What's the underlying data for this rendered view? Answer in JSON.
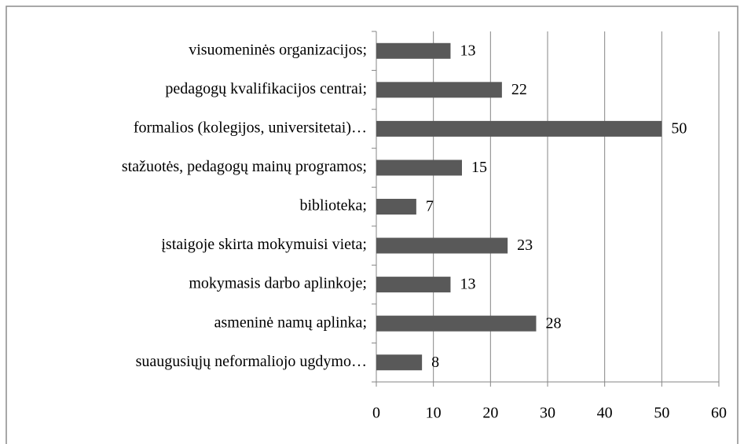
{
  "chart_data": {
    "type": "barh",
    "categories": [
      "visuomeninės organizacijos;",
      "pedagogų kvalifikacijos centrai;",
      "formalios (kolegijos, universitetai)…",
      "stažuotės, pedagogų mainų programos;",
      "biblioteka;",
      "įstaigoje skirta mokymuisi vieta;",
      "mokymasis darbo aplinkoje;",
      "asmeninė namų aplinka;",
      "suaugusiųjų neformaliojo ugdymo…"
    ],
    "values": [
      13,
      22,
      50,
      15,
      7,
      23,
      13,
      28,
      8
    ],
    "color": "#595959",
    "xlim": [
      0,
      60
    ],
    "xticks": [
      0,
      10,
      20,
      30,
      40,
      50,
      60
    ],
    "grid": true
  }
}
